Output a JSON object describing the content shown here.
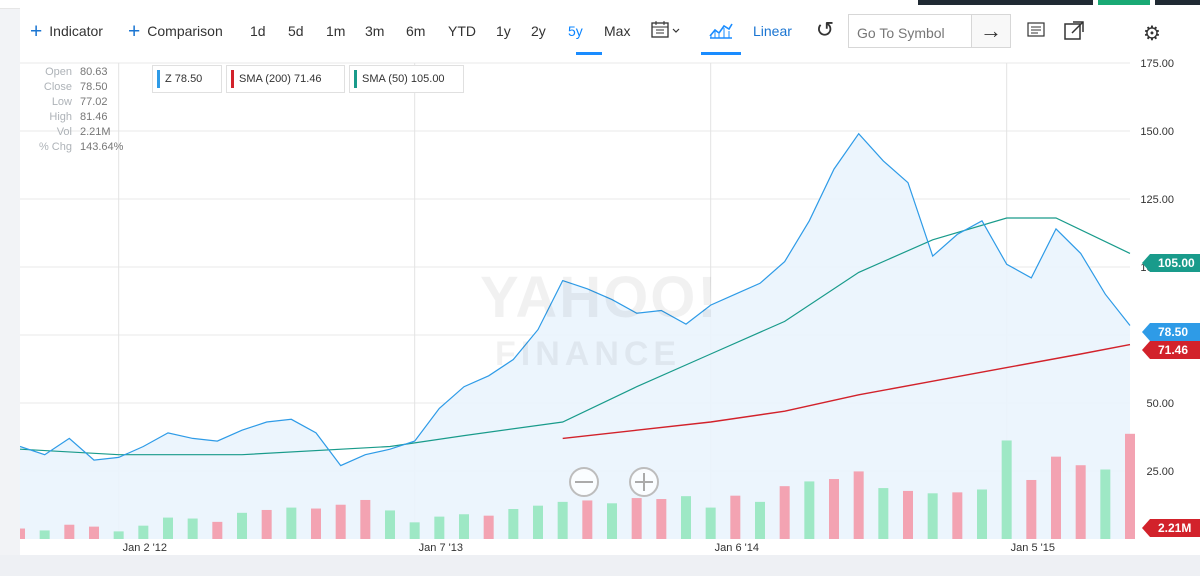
{
  "toolbar": {
    "indicator_label": "Indicator",
    "comparison_label": "Comparison",
    "ranges": [
      "1d",
      "5d",
      "1m",
      "3m",
      "6m",
      "YTD",
      "1y",
      "2y",
      "5y",
      "Max"
    ],
    "active_range": "5y",
    "scale_label": "Linear",
    "search_placeholder": "Go To Symbol"
  },
  "chart_info": {
    "open_label": "Open",
    "open": "80.63",
    "close_label": "Close",
    "close": "78.50",
    "low_label": "Low",
    "low": "77.02",
    "high_label": "High",
    "high": "81.46",
    "vol_label": "Vol",
    "vol": "2.21M",
    "chg_label": "% Chg",
    "chg": "143.64%"
  },
  "legend": {
    "z": "Z 78.50",
    "sma200": "SMA (200) 71.46",
    "sma50": "SMA (50) 105.00"
  },
  "badges": {
    "sma50": "105.00",
    "price": "78.50",
    "sma200": "71.46",
    "volume": "2.21M"
  },
  "watermark": {
    "line1": "YAHOO!",
    "line2": "FINANCE"
  },
  "colors": {
    "price": "#2e9be7",
    "sma200": "#d2222b",
    "sma50": "#199b8b",
    "volume_up": "#9ee8c5",
    "volume_down": "#f3a3b2",
    "area_fill": "#eaf4fd"
  },
  "chart_data": {
    "type": "line",
    "title": "",
    "xlabel": "",
    "ylabel": "",
    "ylim": [
      0,
      175
    ],
    "grid": true,
    "legend_position": "top-left",
    "x_ticks": [
      "Jan 2 '12",
      "Jan 7 '13",
      "Jan 6 '14",
      "Jan 5 '15"
    ],
    "y_ticks": [
      25,
      50,
      75,
      100,
      125,
      150,
      175
    ],
    "series": [
      {
        "name": "Z 78.50",
        "color": "#2e9be7",
        "x": [
          "2011-09",
          "2011-10",
          "2011-11",
          "2011-12",
          "2012-01",
          "2012-02",
          "2012-03",
          "2012-04",
          "2012-05",
          "2012-06",
          "2012-07",
          "2012-08",
          "2012-09",
          "2012-10",
          "2012-11",
          "2012-12",
          "2013-01",
          "2013-02",
          "2013-03",
          "2013-04",
          "2013-05",
          "2013-06",
          "2013-07",
          "2013-08",
          "2013-09",
          "2013-10",
          "2013-11",
          "2013-12",
          "2014-01",
          "2014-02",
          "2014-03",
          "2014-04",
          "2014-05",
          "2014-06",
          "2014-07",
          "2014-08",
          "2014-09",
          "2014-10",
          "2014-11",
          "2014-12",
          "2015-01",
          "2015-02",
          "2015-03",
          "2015-04",
          "2015-05",
          "2015-06"
        ],
        "values": [
          34,
          31,
          37,
          29,
          30,
          34,
          39,
          37,
          36,
          40,
          43,
          44,
          39,
          27,
          31,
          33,
          36,
          48,
          56,
          60,
          66,
          77,
          95,
          92,
          88,
          83,
          84,
          79,
          86,
          90,
          94,
          102,
          117,
          136,
          149,
          139,
          131,
          104,
          112,
          117,
          101,
          96,
          114,
          105,
          90,
          78.5
        ]
      },
      {
        "name": "SMA (200) 71.46",
        "color": "#d2222b",
        "x": [
          "2013-07",
          "2013-10",
          "2014-01",
          "2014-04",
          "2014-07",
          "2014-10",
          "2015-01",
          "2015-04",
          "2015-06"
        ],
        "values": [
          37,
          40,
          43,
          47,
          53,
          58,
          63,
          68,
          71.46
        ]
      },
      {
        "name": "SMA (50) 105.00",
        "color": "#199b8b",
        "x": [
          "2011-09",
          "2012-01",
          "2012-06",
          "2012-12",
          "2013-03",
          "2013-07",
          "2013-10",
          "2014-01",
          "2014-04",
          "2014-07",
          "2014-10",
          "2015-01",
          "2015-03",
          "2015-06"
        ],
        "values": [
          33,
          31,
          31,
          34,
          38,
          43,
          56,
          68,
          80,
          98,
          110,
          118,
          118,
          105
        ]
      }
    ],
    "volume": {
      "latest": "2.21M",
      "bars": [
        {
          "x": "2011-09",
          "value": 0.22,
          "up": false
        },
        {
          "x": "2011-10",
          "value": 0.18,
          "up": true
        },
        {
          "x": "2011-11",
          "value": 0.3,
          "up": false
        },
        {
          "x": "2011-12",
          "value": 0.26,
          "up": false
        },
        {
          "x": "2012-01",
          "value": 0.16,
          "up": true
        },
        {
          "x": "2012-02",
          "value": 0.28,
          "up": true
        },
        {
          "x": "2012-03",
          "value": 0.45,
          "up": true
        },
        {
          "x": "2012-04",
          "value": 0.43,
          "up": true
        },
        {
          "x": "2012-05",
          "value": 0.36,
          "up": false
        },
        {
          "x": "2012-06",
          "value": 0.55,
          "up": true
        },
        {
          "x": "2012-07",
          "value": 0.61,
          "up": false
        },
        {
          "x": "2012-08",
          "value": 0.66,
          "up": true
        },
        {
          "x": "2012-09",
          "value": 0.64,
          "up": false
        },
        {
          "x": "2012-10",
          "value": 0.72,
          "up": false
        },
        {
          "x": "2012-11",
          "value": 0.82,
          "up": false
        },
        {
          "x": "2012-12",
          "value": 0.6,
          "up": true
        },
        {
          "x": "2013-01",
          "value": 0.35,
          "up": true
        },
        {
          "x": "2013-02",
          "value": 0.47,
          "up": true
        },
        {
          "x": "2013-03",
          "value": 0.52,
          "up": true
        },
        {
          "x": "2013-04",
          "value": 0.49,
          "up": false
        },
        {
          "x": "2013-05",
          "value": 0.63,
          "up": true
        },
        {
          "x": "2013-06",
          "value": 0.7,
          "up": true
        },
        {
          "x": "2013-07",
          "value": 0.78,
          "up": true
        },
        {
          "x": "2013-08",
          "value": 0.81,
          "up": false
        },
        {
          "x": "2013-09",
          "value": 0.75,
          "up": true
        },
        {
          "x": "2013-10",
          "value": 0.86,
          "up": false
        },
        {
          "x": "2013-11",
          "value": 0.84,
          "up": false
        },
        {
          "x": "2013-12",
          "value": 0.9,
          "up": true
        },
        {
          "x": "2014-01",
          "value": 0.66,
          "up": true
        },
        {
          "x": "2014-02",
          "value": 0.91,
          "up": false
        },
        {
          "x": "2014-03",
          "value": 0.78,
          "up": true
        },
        {
          "x": "2014-04",
          "value": 1.11,
          "up": false
        },
        {
          "x": "2014-05",
          "value": 1.21,
          "up": true
        },
        {
          "x": "2014-06",
          "value": 1.26,
          "up": false
        },
        {
          "x": "2014-07",
          "value": 1.42,
          "up": false
        },
        {
          "x": "2014-08",
          "value": 1.07,
          "up": true
        },
        {
          "x": "2014-09",
          "value": 1.01,
          "up": false
        },
        {
          "x": "2014-10",
          "value": 0.96,
          "up": true
        },
        {
          "x": "2014-11",
          "value": 0.98,
          "up": false
        },
        {
          "x": "2014-12",
          "value": 1.04,
          "up": true
        },
        {
          "x": "2015-01",
          "value": 2.07,
          "up": true
        },
        {
          "x": "2015-02",
          "value": 1.24,
          "up": false
        },
        {
          "x": "2015-03",
          "value": 1.73,
          "up": false
        },
        {
          "x": "2015-04",
          "value": 1.55,
          "up": false
        },
        {
          "x": "2015-05",
          "value": 1.46,
          "up": true
        },
        {
          "x": "2015-06",
          "value": 2.21,
          "up": false
        }
      ]
    }
  }
}
